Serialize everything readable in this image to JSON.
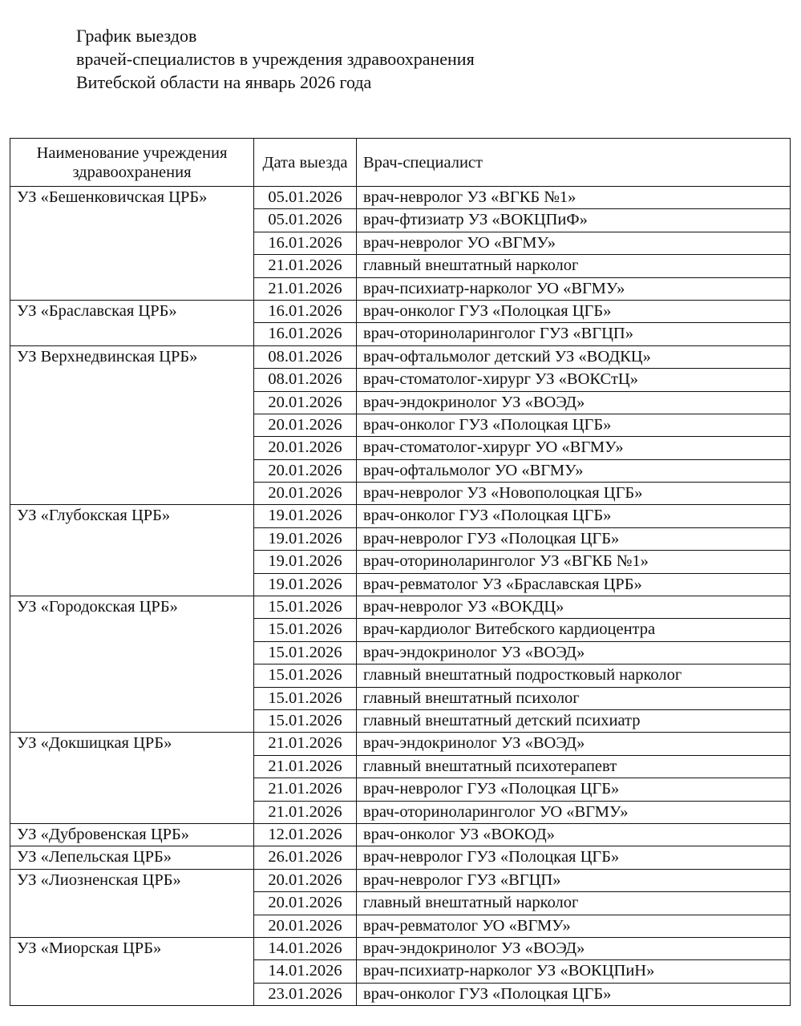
{
  "header": {
    "title": [
      "График выездов",
      "врачей-специалистов в учреждения здравоохранения",
      "Витебской области на январь 2026 года"
    ]
  },
  "table": {
    "columns": [
      "Наименование учреждения здравоохранения",
      "Дата выезда",
      "Врач-специалист"
    ],
    "groups": [
      {
        "name": "УЗ «Бешенковичская ЦРБ»",
        "rows": [
          [
            "05.01.2026",
            "врач-невролог УЗ «ВГКБ №1»"
          ],
          [
            "05.01.2026",
            "врач-фтизиатр УЗ «ВОКЦПиФ»"
          ],
          [
            "16.01.2026",
            "врач-невролог УО «ВГМУ»"
          ],
          [
            "21.01.2026",
            "главный внештатный нарколог"
          ],
          [
            "21.01.2026",
            "врач-психиатр-нарколог УО «ВГМУ»"
          ]
        ]
      },
      {
        "name": "УЗ «Браславская ЦРБ»",
        "rows": [
          [
            "16.01.2026",
            "врач-онколог ГУЗ «Полоцкая ЦГБ»"
          ],
          [
            "16.01.2026",
            "врач-оториноларинголог ГУЗ «ВГЦП»"
          ]
        ]
      },
      {
        "name": "УЗ Верхнедвинская ЦРБ»",
        "rows": [
          [
            "08.01.2026",
            "врач-офтальмолог детский УЗ «ВОДКЦ»"
          ],
          [
            "08.01.2026",
            "врач-стоматолог-хирург УЗ «ВОКСтЦ»"
          ],
          [
            "20.01.2026",
            "врач-эндокринолог УЗ «ВОЭД»"
          ],
          [
            "20.01.2026",
            "врач-онколог ГУЗ «Полоцкая ЦГБ»"
          ],
          [
            "20.01.2026",
            "врач-стоматолог-хирург УО «ВГМУ»"
          ],
          [
            "20.01.2026",
            "врач-офтальмолог УО «ВГМУ»"
          ],
          [
            "20.01.2026",
            "врач-невролог УЗ «Новополоцкая ЦГБ»"
          ]
        ]
      },
      {
        "name": "УЗ «Глубокская ЦРБ»",
        "rows": [
          [
            "19.01.2026",
            "врач-онколог ГУЗ «Полоцкая ЦГБ»"
          ],
          [
            "19.01.2026",
            "врач-невролог ГУЗ «Полоцкая ЦГБ»"
          ],
          [
            "19.01.2026",
            "врач-оториноларинголог УЗ «ВГКБ №1»"
          ],
          [
            "19.01.2026",
            "врач-ревматолог УЗ «Браславская ЦРБ»"
          ]
        ]
      },
      {
        "name": "УЗ «Городокская ЦРБ»",
        "rows": [
          [
            "15.01.2026",
            "врач-невролог УЗ «ВОКДЦ»"
          ],
          [
            "15.01.2026",
            "врач-кардиолог Витебского кардиоцентра"
          ],
          [
            "15.01.2026",
            "врач-эндокринолог УЗ «ВОЭД»"
          ],
          [
            "15.01.2026",
            "главный внештатный подростковый нарколог"
          ],
          [
            "15.01.2026",
            "главный внештатный психолог"
          ],
          [
            "15.01.2026",
            "главный внештатный детский психиатр"
          ]
        ]
      },
      {
        "name": "УЗ «Докшицкая ЦРБ»",
        "rows": [
          [
            "21.01.2026",
            "врач-эндокринолог УЗ «ВОЭД»"
          ],
          [
            "21.01.2026",
            "главный внештатный психотерапевт"
          ],
          [
            "21.01.2026",
            "врач-невролог ГУЗ «Полоцкая ЦГБ»"
          ],
          [
            "21.01.2026",
            "врач-оториноларинголог УО «ВГМУ»"
          ]
        ]
      },
      {
        "name": "УЗ «Дубровенская ЦРБ»",
        "rows": [
          [
            "12.01.2026",
            "врач-онколог УЗ «ВОКОД»"
          ]
        ]
      },
      {
        "name": "УЗ «Лепельская ЦРБ»",
        "rows": [
          [
            "26.01.2026",
            "врач-невролог ГУЗ «Полоцкая ЦГБ»"
          ]
        ]
      },
      {
        "name": "УЗ «Лиозненская ЦРБ»",
        "rows": [
          [
            "20.01.2026",
            "врач-невролог ГУЗ «ВГЦП»"
          ],
          [
            "20.01.2026",
            "главный внештатный нарколог"
          ],
          [
            "20.01.2026",
            "врач-ревматолог УО «ВГМУ»"
          ]
        ]
      },
      {
        "name": "УЗ «Миорская ЦРБ»",
        "rows": [
          [
            "14.01.2026",
            "врач-эндокринолог УЗ «ВОЭД»"
          ],
          [
            "14.01.2026",
            "врач-психиатр-нарколог УЗ «ВОКЦПиН»"
          ],
          [
            "23.01.2026",
            "врач-онколог ГУЗ «Полоцкая ЦГБ»"
          ]
        ]
      }
    ]
  }
}
